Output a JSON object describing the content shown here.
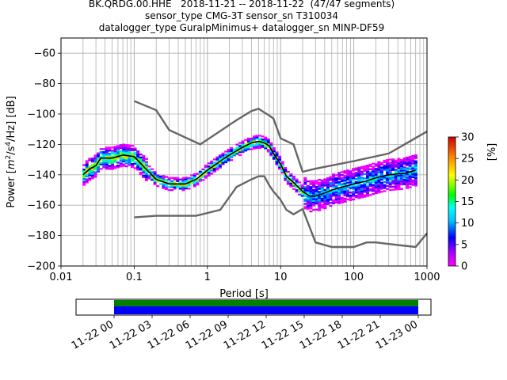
{
  "figure": {
    "title_lines": [
      "BK.QRDG.00.HHE   2018-11-21 -- 2018-11-22  (47/47 segments)",
      "sensor_type CMG-3T sensor_sn T310034",
      "datalogger_type GuralpMinimus+ datalogger_sn MINP-DF59"
    ]
  },
  "chart_data": [
    {
      "type": "heatmap",
      "title": "BK.QRDG.00.HHE   2018-11-21 -- 2018-11-22  (47/47 segments)",
      "xlabel": "Period [s]",
      "ylabel": "Power [m²/s⁴/Hz] [dB]",
      "ylabel_parts": {
        "pre": "Power [",
        "m": "m",
        "sup2": "2",
        "mid": "/s",
        "sup4": "4",
        "post": "/Hz] [dB]"
      },
      "x_scale": "log",
      "xlim": [
        0.01,
        1000
      ],
      "ylim": [
        -200,
        -50
      ],
      "x_ticks": [
        0.01,
        0.1,
        1,
        10,
        100,
        1000
      ],
      "x_tick_labels": [
        "0.01",
        "0.1",
        "1",
        "10",
        "100",
        "1000"
      ],
      "y_ticks": [
        -200,
        -180,
        -160,
        -140,
        -120,
        -100,
        -80,
        -60
      ],
      "y_tick_labels": [
        "−200",
        "−180",
        "−160",
        "−140",
        "−120",
        "−100",
        "−80",
        "−60"
      ],
      "grid": true,
      "colorbar": {
        "label": "[%]",
        "range": [
          0,
          30
        ],
        "ticks": [
          0,
          5,
          10,
          15,
          20,
          25,
          30
        ],
        "tick_labels": [
          "0",
          "5",
          "10",
          "15",
          "20",
          "25",
          "30"
        ]
      },
      "series": [
        {
          "name": "",
          "style": "line",
          "color": "#000000",
          "x": [
            0.02,
            0.025,
            0.03,
            0.035,
            0.05,
            0.07,
            0.1,
            0.15,
            0.2,
            0.3,
            0.5,
            0.7,
            1,
            1.5,
            2,
            3,
            4,
            5,
            6,
            7,
            8,
            10,
            12,
            15,
            20,
            25,
            30,
            40,
            50,
            70,
            100,
            150,
            200,
            300,
            500,
            700
          ],
          "y": [
            -140,
            -136,
            -134,
            -129,
            -129,
            -127,
            -128,
            -137,
            -143,
            -146,
            -146,
            -143,
            -137,
            -131,
            -127,
            -122,
            -119,
            -118,
            -119,
            -121,
            -126,
            -133,
            -141,
            -145,
            -151,
            -154,
            -154,
            -152,
            -150,
            -148,
            -146,
            -144,
            -142,
            -140,
            -139,
            -137
          ]
        },
        {
          "name": "",
          "style": "line",
          "color": "#666666",
          "x": [
            0.1,
            0.2,
            0.3,
            0.8,
            2.5,
            4,
            5,
            6,
            7,
            8,
            10,
            15,
            20,
            30,
            100,
            300,
            1000
          ],
          "y": [
            -91.5,
            -97.5,
            -110.5,
            -120,
            -104,
            -98,
            -96.5,
            -99,
            -101,
            -103,
            -116,
            -120,
            -138,
            -136,
            -131,
            -126,
            -111.5
          ]
        },
        {
          "name": "",
          "style": "line",
          "color": "#666666",
          "x": [
            0.1,
            0.2,
            0.7,
            1.5,
            2.5,
            4,
            5,
            6,
            7,
            8,
            10,
            12,
            15,
            20,
            30,
            50,
            70,
            100,
            150,
            200,
            300,
            700,
            1000
          ],
          "y": [
            -168,
            -167,
            -167,
            -163,
            -148,
            -143,
            -141,
            -141,
            -147,
            -151,
            -156.5,
            -163,
            -166,
            -162.5,
            -184.5,
            -187.5,
            -187.5,
            -187.5,
            -184.5,
            -184.5,
            -185.5,
            -187.5,
            -178.5
          ]
        }
      ]
    },
    {
      "type": "bar",
      "title": "",
      "x_ticks_labels": [
        "11-22 00",
        "11-22 03",
        "11-22 06",
        "11-22 09",
        "11-22 12",
        "11-22 15",
        "11-22 18",
        "11-22 21",
        "11-23 00"
      ],
      "x_range": [
        "2018-11-21 21:00",
        "2018-11-23 01:00"
      ],
      "series": [
        {
          "name": "",
          "color": "#008000",
          "start": "2018-11-22 00:00",
          "end": "2018-11-23 00:00"
        },
        {
          "name": "",
          "color": "#0000ff",
          "start": "2018-11-22 00:00",
          "end": "2018-11-23 00:00"
        }
      ]
    }
  ]
}
